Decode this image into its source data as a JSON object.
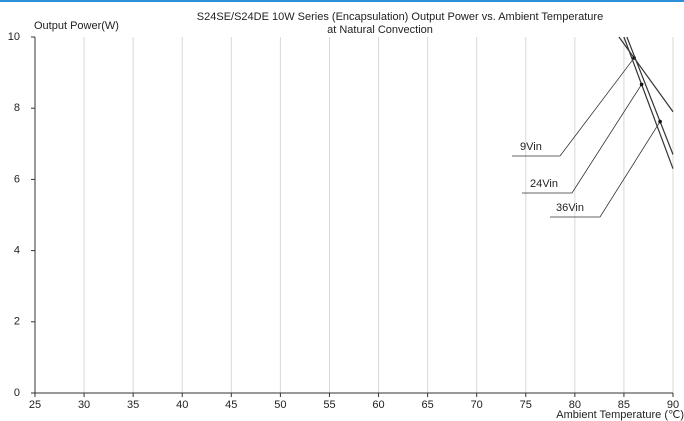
{
  "chart_data": {
    "type": "line",
    "title": "S24SE/S24DE 10W Series  (Encapsulation)  Output Power vs. Ambient Temperature",
    "subtitle": "at Natural Convection",
    "y_label": "Output Power(W)",
    "x_label": "Ambient Temperature (℃)",
    "xlim": [
      25,
      90
    ],
    "xticks": [
      25,
      30,
      35,
      40,
      45,
      50,
      55,
      60,
      65,
      70,
      75,
      80,
      85,
      90
    ],
    "ylim": [
      0,
      10
    ],
    "yticks": [
      0,
      2,
      4,
      6,
      8,
      10
    ],
    "grid": "x",
    "series": [
      {
        "name": "9Vin",
        "color": "#333333",
        "x": [
          84.5,
          90
        ],
        "values": [
          10,
          7.9
        ]
      },
      {
        "name": "24Vin",
        "color": "#333333",
        "x": [
          85,
          90
        ],
        "values": [
          10,
          6.3
        ]
      },
      {
        "name": "36Vin",
        "color": "#333333",
        "x": [
          85.3,
          90
        ],
        "values": [
          10,
          6.7
        ]
      }
    ]
  }
}
